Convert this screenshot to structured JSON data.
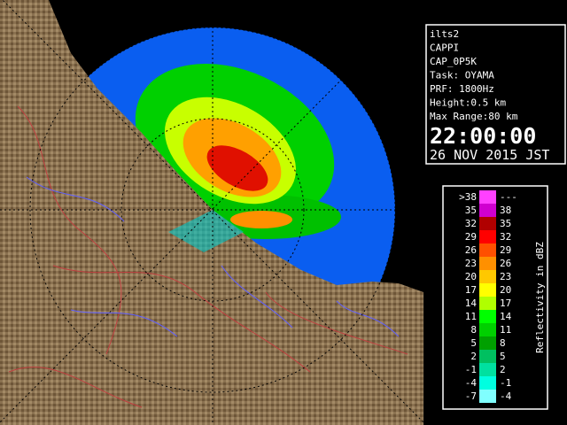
{
  "panel": {
    "lines": [
      "ilts2",
      "CAPPI",
      "CAP_0P5K",
      "Task: OYAMA",
      "PRF: 1800Hz",
      "Height:0.5 km",
      "Max Range:80 km"
    ],
    "time": "22:00:00",
    "date": "26 NOV 2015 JST"
  },
  "legend": {
    "title": "Reflectivity in dBZ",
    "rows": [
      {
        "low": ">38",
        "high": "---",
        "color": "#ff40ff"
      },
      {
        "low": "35",
        "high": "38",
        "color": "#d000d0"
      },
      {
        "low": "32",
        "high": "35",
        "color": "#b00000"
      },
      {
        "low": "29",
        "high": "32",
        "color": "#ff0000"
      },
      {
        "low": "26",
        "high": "29",
        "color": "#ff5000"
      },
      {
        "low": "23",
        "high": "26",
        "color": "#ff9000"
      },
      {
        "low": "20",
        "high": "23",
        "color": "#ffc800"
      },
      {
        "low": "17",
        "high": "20",
        "color": "#ffff00"
      },
      {
        "low": "14",
        "high": "17",
        "color": "#b0ff00"
      },
      {
        "low": "11",
        "high": "14",
        "color": "#00ff00"
      },
      {
        "low": "8",
        "high": "11",
        "color": "#00d000"
      },
      {
        "low": "5",
        "high": "8",
        "color": "#00a000"
      },
      {
        "low": "2",
        "high": "5",
        "color": "#00c060"
      },
      {
        "low": "-1",
        "high": "2",
        "color": "#00e0a0"
      },
      {
        "low": "-4",
        "high": "-1",
        "color": "#00ffe0"
      },
      {
        "low": "-7",
        "high": "-4",
        "color": "#80ffff"
      }
    ]
  }
}
